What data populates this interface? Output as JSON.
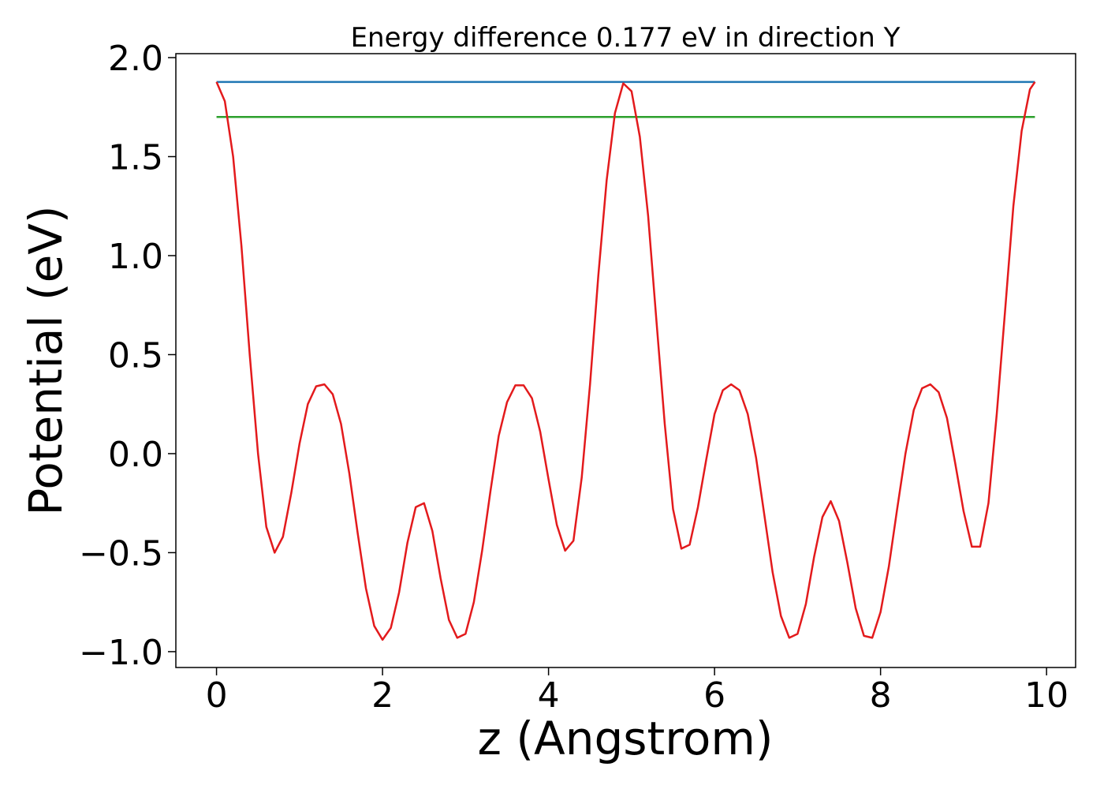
{
  "chart_data": {
    "type": "line",
    "title": "Energy difference 0.177 eV in direction Y",
    "xlabel": "z (Angstrom)",
    "ylabel": "Potential (eV)",
    "xlim": [
      -0.49,
      10.35
    ],
    "ylim": [
      -1.08,
      2.02
    ],
    "xticks": [
      0,
      2,
      4,
      6,
      8,
      10
    ],
    "yticks": [
      {
        "value": -1.0,
        "label": "−1.0"
      },
      {
        "value": -0.5,
        "label": "−0.5"
      },
      {
        "value": 0.0,
        "label": "0.0"
      },
      0.5,
      {
        "value": 1.0,
        "label": "1.0"
      },
      1.5,
      {
        "value": 2.0,
        "label": "2.0"
      }
    ],
    "grid": false,
    "series": [
      {
        "color": "#1f77b4",
        "x": [
          0,
          9.86
        ],
        "values": [
          1.877,
          1.877
        ]
      },
      {
        "color": "#2ca02c",
        "x": [
          0,
          9.86
        ],
        "values": [
          1.7,
          1.7
        ]
      },
      {
        "color": "#e31a1c",
        "x": [
          0,
          0.1,
          0.2,
          0.3,
          0.4,
          0.5,
          0.6,
          0.7,
          0.8,
          0.9,
          1.0,
          1.1,
          1.2,
          1.3,
          1.4,
          1.5,
          1.6,
          1.7,
          1.8,
          1.9,
          2.0,
          2.1,
          2.2,
          2.3,
          2.4,
          2.5,
          2.6,
          2.7,
          2.8,
          2.9,
          3.0,
          3.1,
          3.2,
          3.3,
          3.4,
          3.5,
          3.6,
          3.7,
          3.8,
          3.9,
          4.0,
          4.1,
          4.2,
          4.3,
          4.4,
          4.5,
          4.6,
          4.7,
          4.8,
          4.9,
          5.0,
          5.1,
          5.2,
          5.3,
          5.4,
          5.5,
          5.6,
          5.7,
          5.8,
          5.9,
          6.0,
          6.1,
          6.2,
          6.3,
          6.4,
          6.5,
          6.6,
          6.7,
          6.8,
          6.9,
          7.0,
          7.1,
          7.2,
          7.3,
          7.4,
          7.5,
          7.6,
          7.7,
          7.8,
          7.9,
          8.0,
          8.1,
          8.2,
          8.3,
          8.4,
          8.5,
          8.6,
          8.7,
          8.8,
          8.9,
          9.0,
          9.1,
          9.2,
          9.3,
          9.4,
          9.5,
          9.6,
          9.7,
          9.8,
          9.86
        ],
        "values": [
          1.877,
          1.78,
          1.5,
          1.05,
          0.5,
          0.0,
          -0.37,
          -0.5,
          -0.42,
          -0.2,
          0.05,
          0.25,
          0.34,
          0.35,
          0.3,
          0.15,
          -0.1,
          -0.4,
          -0.68,
          -0.87,
          -0.94,
          -0.88,
          -0.7,
          -0.45,
          -0.27,
          -0.25,
          -0.39,
          -0.63,
          -0.84,
          -0.93,
          -0.91,
          -0.75,
          -0.49,
          -0.19,
          0.09,
          0.26,
          0.345,
          0.345,
          0.28,
          0.11,
          -0.13,
          -0.36,
          -0.49,
          -0.44,
          -0.12,
          0.35,
          0.9,
          1.38,
          1.72,
          1.87,
          1.83,
          1.6,
          1.2,
          0.67,
          0.15,
          -0.28,
          -0.48,
          -0.46,
          -0.27,
          -0.03,
          0.2,
          0.32,
          0.35,
          0.32,
          0.2,
          -0.02,
          -0.31,
          -0.6,
          -0.82,
          -0.93,
          -0.91,
          -0.76,
          -0.52,
          -0.32,
          -0.24,
          -0.34,
          -0.55,
          -0.78,
          -0.92,
          -0.93,
          -0.8,
          -0.57,
          -0.28,
          0.0,
          0.22,
          0.33,
          0.35,
          0.31,
          0.18,
          -0.05,
          -0.29,
          -0.47,
          -0.47,
          -0.25,
          0.2,
          0.72,
          1.25,
          1.63,
          1.84,
          1.877
        ]
      }
    ]
  }
}
